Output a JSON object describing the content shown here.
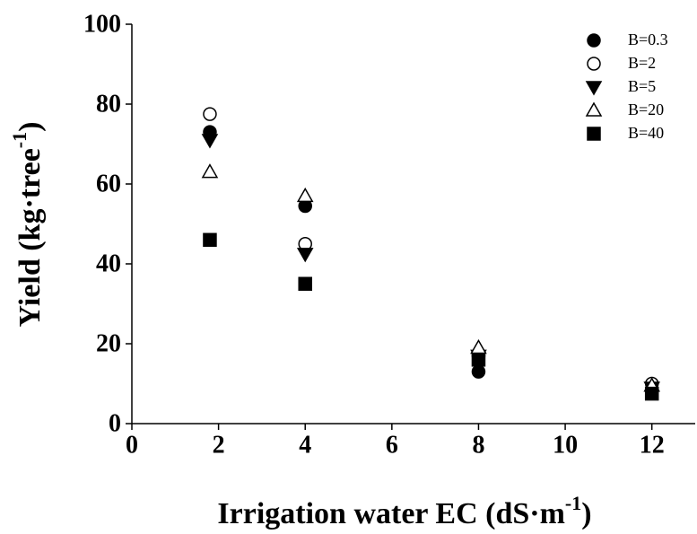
{
  "chart_data": {
    "type": "scatter",
    "x_label": {
      "text": "Irrigation water EC (dS·m",
      "sup": "-1",
      "end": ")"
    },
    "y_label": {
      "text": "Yield (kg·tree",
      "sup": "-1",
      "end": ")"
    },
    "xlim": [
      0,
      13
    ],
    "xticks": [
      0,
      2,
      4,
      6,
      8,
      10,
      12
    ],
    "ylim": [
      0,
      100
    ],
    "yticks": [
      0,
      20,
      40,
      60,
      80,
      100
    ],
    "grid": false,
    "legend_position": "top-right",
    "series": [
      {
        "name": "B=0.3",
        "color": "#000000",
        "marker": "circle",
        "x": [
          1.8,
          4,
          8,
          12
        ],
        "values": [
          73,
          54.5,
          13,
          8.5
        ]
      },
      {
        "name": "B=2",
        "color": "#000000",
        "marker": "circle-open",
        "x": [
          1.8,
          4,
          8,
          12
        ],
        "values": [
          77.5,
          45,
          17,
          10
        ]
      },
      {
        "name": "B=5",
        "color": "#000000",
        "marker": "triangle-down",
        "x": [
          1.8,
          4,
          8,
          12
        ],
        "values": [
          71,
          42.5,
          17,
          9
        ]
      },
      {
        "name": "B=20",
        "color": "#000000",
        "marker": "triangle-up-open",
        "x": [
          1.8,
          4,
          8,
          12
        ],
        "values": [
          63,
          57,
          19,
          9.5
        ]
      },
      {
        "name": "B=40",
        "color": "#000000",
        "marker": "square",
        "x": [
          1.8,
          4,
          8,
          12
        ],
        "values": [
          46,
          35,
          16,
          7.5
        ]
      }
    ]
  }
}
